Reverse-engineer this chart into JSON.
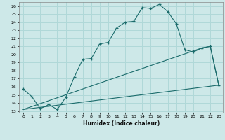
{
  "xlabel": "Humidex (Indice chaleur)",
  "background_color": "#cde8e8",
  "grid_color": "#b0d8d8",
  "line_color": "#1a6b6b",
  "line1_x": [
    0,
    1,
    2,
    3,
    4,
    5,
    6,
    7,
    8,
    9,
    10,
    11,
    12,
    13,
    14,
    15,
    16,
    17,
    18,
    19,
    20,
    21,
    22,
    23
  ],
  "line1_y": [
    15.7,
    14.8,
    13.3,
    13.8,
    13.2,
    14.7,
    17.2,
    19.4,
    19.5,
    21.3,
    21.5,
    23.3,
    24.0,
    24.1,
    25.8,
    25.7,
    26.2,
    25.3,
    23.8,
    20.6,
    20.3,
    20.8,
    21.0,
    16.2
  ],
  "line2_x": [
    0,
    23
  ],
  "line2_y": [
    13.2,
    16.2
  ],
  "line3_x": [
    0,
    21,
    22,
    23
  ],
  "line3_y": [
    13.2,
    20.8,
    21.0,
    16.2
  ],
  "xlim": [
    -0.5,
    23.5
  ],
  "ylim": [
    12.8,
    26.5
  ],
  "yticks": [
    13,
    14,
    15,
    16,
    17,
    18,
    19,
    20,
    21,
    22,
    23,
    24,
    25,
    26
  ],
  "xtick_labels": [
    "0",
    "1",
    "2",
    "3",
    "4",
    "5",
    "6",
    "7",
    "8",
    "9",
    "10",
    "11",
    "12",
    "13",
    "14",
    "15",
    "16",
    "17",
    "18",
    "19",
    "20",
    "21",
    "22",
    "23"
  ],
  "xticks": [
    0,
    1,
    2,
    3,
    4,
    5,
    6,
    7,
    8,
    9,
    10,
    11,
    12,
    13,
    14,
    15,
    16,
    17,
    18,
    19,
    20,
    21,
    22,
    23
  ]
}
